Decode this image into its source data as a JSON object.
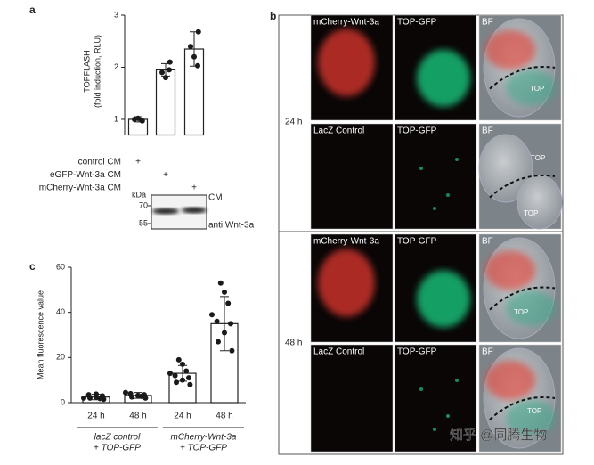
{
  "panel_labels": [
    "a",
    "b",
    "c"
  ],
  "chart_data": [
    {
      "type": "bar",
      "ylabel": [
        "TOPFLASH",
        "(fold induction, RLU)"
      ],
      "ylim": [
        0.7,
        3
      ],
      "yticks": [
        1,
        2,
        3
      ],
      "values": [
        1.0,
        1.95,
        2.35
      ],
      "errors": [
        0.05,
        0.12,
        0.33
      ],
      "points": [
        [
          0.97,
          1.0,
          1.02,
          0.98
        ],
        [
          2.1,
          1.9,
          1.8,
          1.95
        ],
        [
          2.68,
          2.4,
          2.2,
          2.03
        ]
      ],
      "color": "#ffffff",
      "point_color": "#1a1a1a"
    },
    {
      "type": "bar",
      "ylabel": [
        "Mean fluorescence value"
      ],
      "categories": [
        "24 h",
        "48 h",
        "24 h",
        "48 h"
      ],
      "groups": [
        [
          "lacZ control",
          "+ TOP-GFP"
        ],
        [
          "mCherry-Wnt-3a",
          "+ TOP-GFP"
        ]
      ],
      "ylim": [
        0,
        60
      ],
      "yticks": [
        0,
        20,
        40,
        60
      ],
      "values": [
        2.5,
        3.2,
        13,
        35
      ],
      "errors": [
        1.2,
        1.3,
        3.5,
        12
      ],
      "points": [
        [
          1.5,
          2,
          2.5,
          3,
          3.5,
          2,
          1.8,
          3.8
        ],
        [
          2,
          2.5,
          3,
          3.5,
          4,
          4.5,
          2.8,
          3.2
        ],
        [
          8,
          9,
          10,
          11,
          12,
          13,
          14,
          17,
          19
        ],
        [
          23,
          27,
          31,
          35,
          36,
          39,
          44,
          49,
          53
        ]
      ],
      "color": "#ffffff",
      "point_color": "#1a1a1a"
    }
  ],
  "panel_a_table": {
    "rows": [
      "control CM",
      "eGFP-Wnt-3a CM",
      "mCherry-Wnt-3a CM"
    ],
    "marks": [
      "+",
      "+",
      "+"
    ]
  },
  "blot": {
    "unit": "kDa",
    "markers": [
      "70",
      "55"
    ],
    "top_label": "CM",
    "bottom_label": "anti Wnt-3a"
  },
  "panel_b": {
    "blocks": [
      {
        "time": "24 h",
        "rows": [
          {
            "channels": [
              "mCherry-Wnt-3a",
              "TOP-GFP",
              "BF"
            ],
            "bf_labels": [
              "TOP"
            ]
          },
          {
            "channels": [
              "LacZ Control",
              "TOP-GFP",
              "BF"
            ],
            "bf_labels": [
              "TOP",
              "TOP"
            ]
          }
        ]
      },
      {
        "time": "48 h",
        "rows": [
          {
            "channels": [
              "mCherry-Wnt-3a",
              "TOP-GFP",
              "BF"
            ],
            "bf_labels": [
              "TOP"
            ]
          },
          {
            "channels": [
              "LacZ Control",
              "TOP-GFP",
              "BF"
            ],
            "bf_labels": [
              "TOP"
            ]
          }
        ]
      }
    ]
  },
  "watermark": "知乎 @同腾生物"
}
